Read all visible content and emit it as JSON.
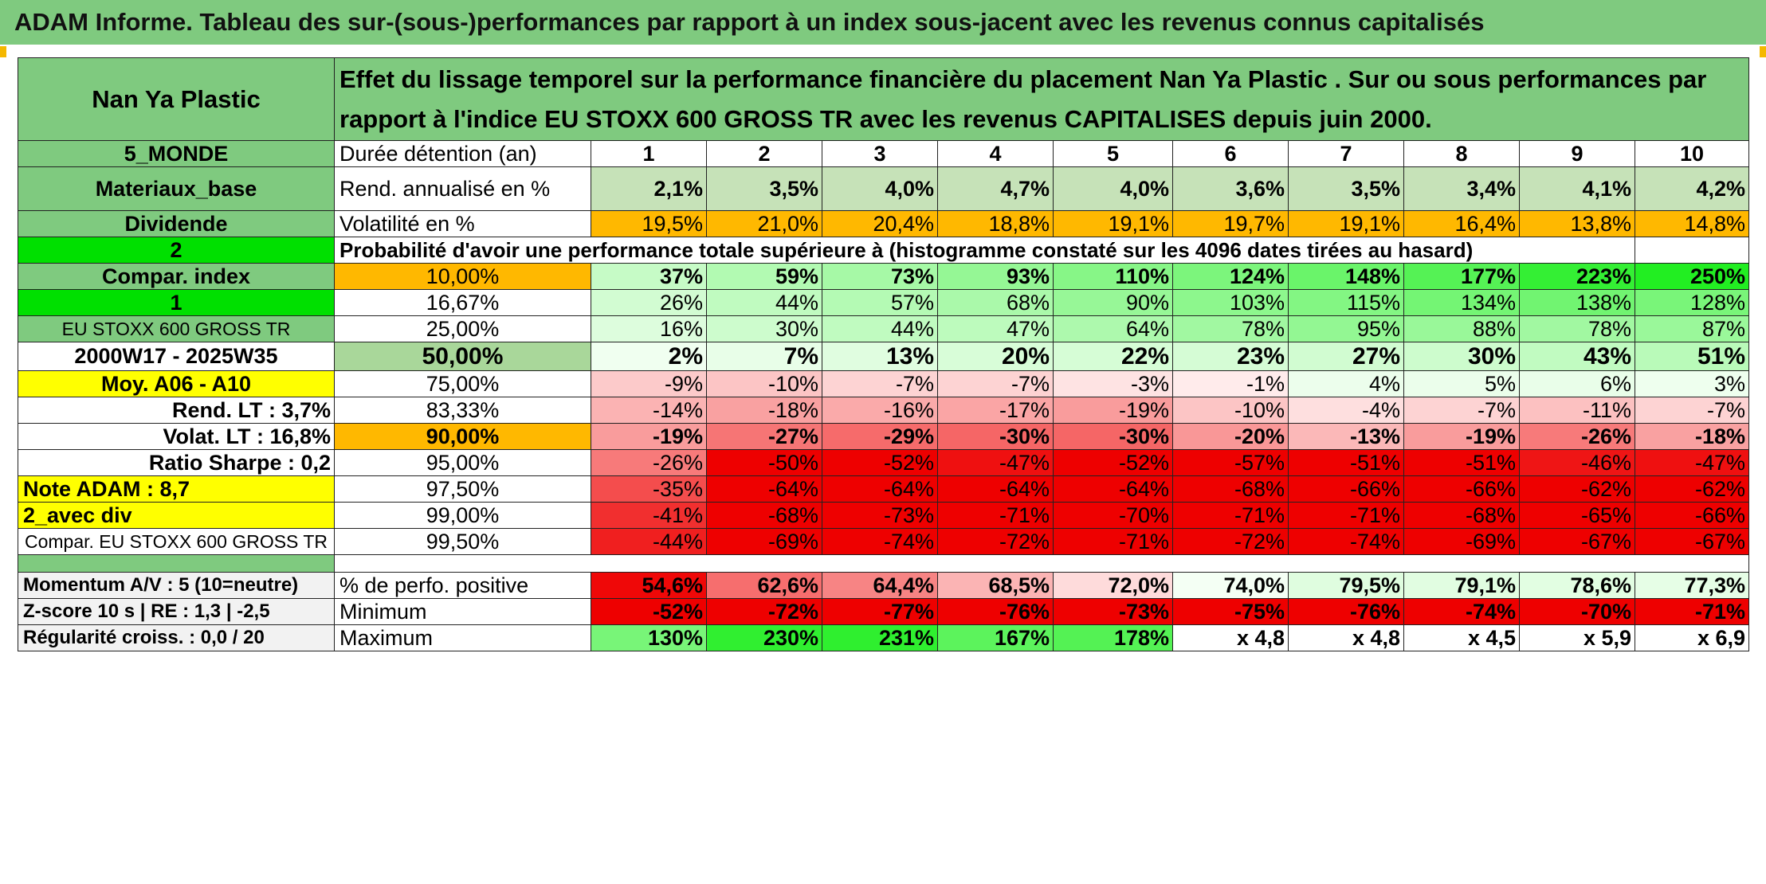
{
  "title": "ADAM Informe. Tableau des sur-(sous-)performances par rapport à un index sous-jacent avec les revenus connus capitalisés",
  "header": {
    "left": "Nan Ya Plastic",
    "right": "Effet du lissage temporel sur la performance financière du placement Nan Ya Plastic . Sur ou sous performances par rapport à l'indice EU STOXX 600 GROSS TR avec les revenus CAPITALISES depuis juin 2000."
  },
  "years_row": {
    "left": "5_MONDE",
    "label": "Durée détention (an)",
    "values": [
      "1",
      "2",
      "3",
      "4",
      "5",
      "6",
      "7",
      "8",
      "9",
      "10"
    ]
  },
  "rend_row": {
    "left": "Materiaux_base",
    "label": "Rend. annualisé en %",
    "values": [
      "2,1%",
      "3,5%",
      "4,0%",
      "4,7%",
      "4,0%",
      "3,6%",
      "3,5%",
      "3,4%",
      "4,1%",
      "4,2%"
    ]
  },
  "vol_row": {
    "left": "Dividende",
    "label": "Volatilité en %",
    "values": [
      "19,5%",
      "21,0%",
      "20,4%",
      "18,8%",
      "19,1%",
      "19,7%",
      "19,1%",
      "16,4%",
      "13,8%",
      "14,8%"
    ]
  },
  "prob_row": {
    "left": "2",
    "label": "Probabilité d'avoir une performance totale supérieure à (histogramme constaté sur les 4096 dates tirées au hasard)"
  },
  "quantile_rows": [
    {
      "left": "Compar. index",
      "pct": "10,00%",
      "values": [
        "37%",
        "59%",
        "73%",
        "93%",
        "110%",
        "124%",
        "148%",
        "177%",
        "223%",
        "250%"
      ]
    },
    {
      "left": "1",
      "pct": "16,67%",
      "values": [
        "26%",
        "44%",
        "57%",
        "68%",
        "90%",
        "103%",
        "115%",
        "134%",
        "138%",
        "128%"
      ]
    },
    {
      "left": "EU STOXX 600 GROSS TR",
      "pct": "25,00%",
      "values": [
        "16%",
        "30%",
        "44%",
        "47%",
        "64%",
        "78%",
        "95%",
        "88%",
        "78%",
        "87%"
      ]
    },
    {
      "left": "2000W17 - 2025W35",
      "pct": "50,00%",
      "values": [
        "2%",
        "7%",
        "13%",
        "20%",
        "22%",
        "23%",
        "27%",
        "30%",
        "43%",
        "51%"
      ]
    },
    {
      "left": "Moy. A06 - A10",
      "pct": "75,00%",
      "values": [
        "-9%",
        "-10%",
        "-7%",
        "-7%",
        "-3%",
        "-1%",
        "4%",
        "5%",
        "6%",
        "3%"
      ]
    },
    {
      "left": "Rend. LT :   3,7%",
      "pct": "83,33%",
      "values": [
        "-14%",
        "-18%",
        "-16%",
        "-17%",
        "-19%",
        "-10%",
        "-4%",
        "-7%",
        "-11%",
        "-7%"
      ]
    },
    {
      "left": "Volat. LT :   16,8%",
      "pct": "90,00%",
      "values": [
        "-19%",
        "-27%",
        "-29%",
        "-30%",
        "-30%",
        "-20%",
        "-13%",
        "-19%",
        "-26%",
        "-18%"
      ]
    },
    {
      "left": "Ratio Sharpe :    0,2",
      "pct": "95,00%",
      "values": [
        "-26%",
        "-50%",
        "-52%",
        "-47%",
        "-52%",
        "-57%",
        "-51%",
        "-51%",
        "-46%",
        "-47%"
      ]
    },
    {
      "left": "Note ADAM : 8,7",
      "pct": "97,50%",
      "values": [
        "-35%",
        "-64%",
        "-64%",
        "-64%",
        "-64%",
        "-68%",
        "-66%",
        "-66%",
        "-62%",
        "-62%"
      ]
    },
    {
      "left": "2_avec div",
      "pct": "99,00%",
      "values": [
        "-41%",
        "-68%",
        "-73%",
        "-71%",
        "-70%",
        "-71%",
        "-71%",
        "-68%",
        "-65%",
        "-66%"
      ]
    },
    {
      "left": "Compar. EU STOXX 600 GROSS TR",
      "pct": "99,50%",
      "values": [
        "-44%",
        "-69%",
        "-74%",
        "-72%",
        "-71%",
        "-72%",
        "-74%",
        "-69%",
        "-67%",
        "-67%"
      ]
    }
  ],
  "bottom_rows": [
    {
      "left": "Momentum A/V : 5 (10=neutre)",
      "label": "% de perfo. positive",
      "values": [
        "54,6%",
        "62,6%",
        "64,4%",
        "68,5%",
        "72,0%",
        "74,0%",
        "79,5%",
        "79,1%",
        "78,6%",
        "77,3%"
      ]
    },
    {
      "left": "Z-score 10 s | RE : 1,3 | -2,5",
      "label": "Minimum",
      "values": [
        "-52%",
        "-72%",
        "-77%",
        "-76%",
        "-73%",
        "-75%",
        "-76%",
        "-74%",
        "-70%",
        "-71%"
      ]
    },
    {
      "left": "Régularité croiss. : 0,0 / 20",
      "label": "Maximum",
      "values": [
        "130%",
        "230%",
        "231%",
        "167%",
        "178%",
        "x 4,8",
        "x 4,8",
        "x 4,5",
        "x 5,9",
        "x 6,9"
      ]
    }
  ],
  "colors": {
    "title_bg": "#7fca7f",
    "left_green": "#7fca7f",
    "bright_green": "#00e000",
    "yellow": "#ffff00",
    "orange": "#ffb800",
    "red_text": "#e00000"
  }
}
